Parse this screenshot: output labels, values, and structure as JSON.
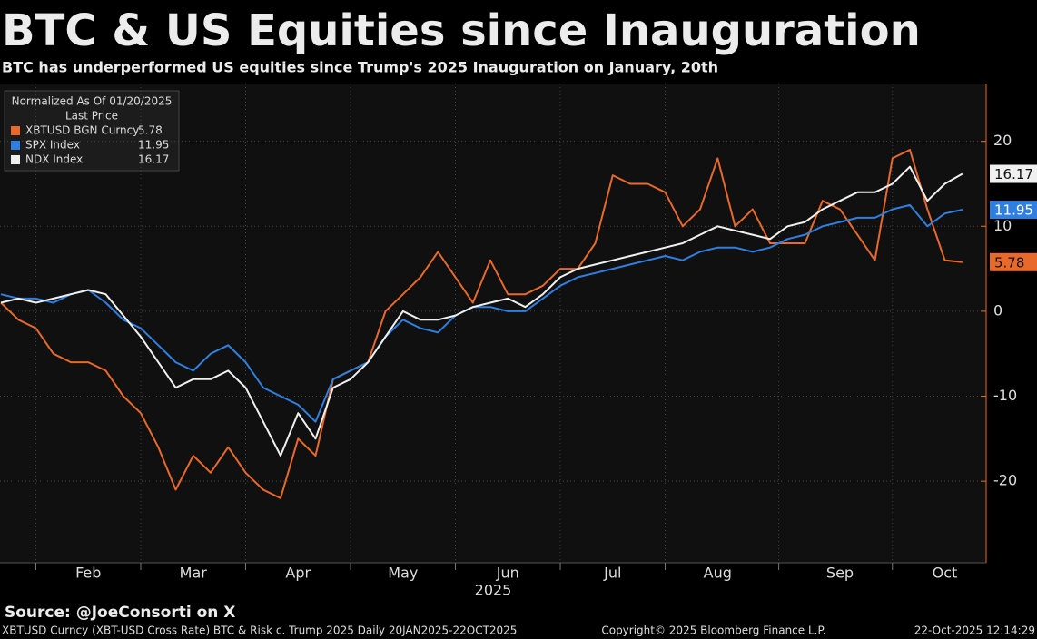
{
  "chart_data": {
    "type": "line",
    "title": "BTC & US Equities since Inauguration",
    "subtitle": "BTC has underperformed US equities since Trump's 2025 Inauguration on January, 20th",
    "legend_title": "Normalized As Of 01/20/2025",
    "legend_subtitle": "Last Price",
    "legend": "upper left",
    "grid": true,
    "x_year_label": "2025",
    "source": "Source:  @JoeConsorti on X",
    "footer_left": "XBTUSD Curncy (XBT-USD Cross Rate) BTC & Risk c. Trump 2025 Daily 20JAN2025-22OCT2025",
    "footer_center": "Copyright© 2025 Bloomberg Finance L.P.",
    "footer_right": "22-Oct-2025 12:14:29",
    "categories": [
      null,
      null,
      null,
      null,
      null,
      "Feb",
      null,
      null,
      null,
      null,
      null,
      "Mar",
      null,
      null,
      null,
      null,
      null,
      "Apr",
      null,
      null,
      null,
      null,
      null,
      "May",
      null,
      null,
      null,
      null,
      null,
      "Jun",
      null,
      null,
      null,
      null,
      null,
      "Jul",
      null,
      null,
      null,
      null,
      null,
      "Aug",
      null,
      null,
      null,
      null,
      null,
      null,
      "Sep",
      null,
      null,
      null,
      null,
      null,
      "Oct",
      null
    ],
    "ylim": [
      -29.6,
      26.8
    ],
    "yticks": [
      -20,
      -10,
      0,
      10,
      20
    ],
    "series": [
      {
        "name": "XBTUSD BGN Curncy",
        "color": "#e8692a",
        "values": [
          1,
          -1,
          -2,
          -5,
          -6,
          -6,
          -7,
          -10,
          -12,
          -16,
          -21,
          -17,
          -19,
          -16,
          -19,
          -21,
          -22,
          -15,
          -17,
          -8,
          -7,
          -6,
          0,
          2,
          4,
          7,
          4,
          1,
          6,
          2,
          2,
          3,
          5,
          5,
          8,
          16,
          15,
          15,
          14,
          10,
          12,
          18,
          10,
          12,
          8,
          8,
          8,
          13,
          12,
          9,
          6,
          18,
          19,
          12,
          6,
          5.78
        ]
      },
      {
        "name": "SPX Index",
        "color": "#2f7fe0",
        "values": [
          2,
          1.5,
          1.5,
          1,
          2,
          2.5,
          1,
          -1,
          -2,
          -4,
          -6,
          -7,
          -5,
          -4,
          -6,
          -9,
          -10,
          -11,
          -13,
          -8,
          -7,
          -6,
          -3,
          -1,
          -2,
          -2.5,
          -0.5,
          0.5,
          0.5,
          0,
          0,
          1.5,
          3,
          4,
          4.5,
          5,
          5.5,
          6,
          6.5,
          6,
          7,
          7.5,
          7.5,
          7,
          7.5,
          8.5,
          9,
          10,
          10.5,
          11,
          11,
          12,
          12.5,
          10,
          11.5,
          11.95
        ]
      },
      {
        "name": "NDX Index",
        "color": "#f0f0f0",
        "values": [
          1,
          1.5,
          1,
          1.5,
          2,
          2.5,
          2,
          -0.5,
          -3,
          -6,
          -9,
          -8,
          -8,
          -7,
          -9,
          -13,
          -17,
          -12,
          -15,
          -9,
          -8,
          -6,
          -3,
          0,
          -1,
          -1,
          -0.5,
          0.5,
          1,
          1.5,
          0.5,
          2,
          4,
          5,
          5.5,
          6,
          6.5,
          7,
          7.5,
          8,
          9,
          10,
          9.5,
          9,
          8.5,
          10,
          10.5,
          12,
          13,
          14,
          14,
          15,
          17,
          13,
          15,
          16.17
        ]
      }
    ]
  }
}
